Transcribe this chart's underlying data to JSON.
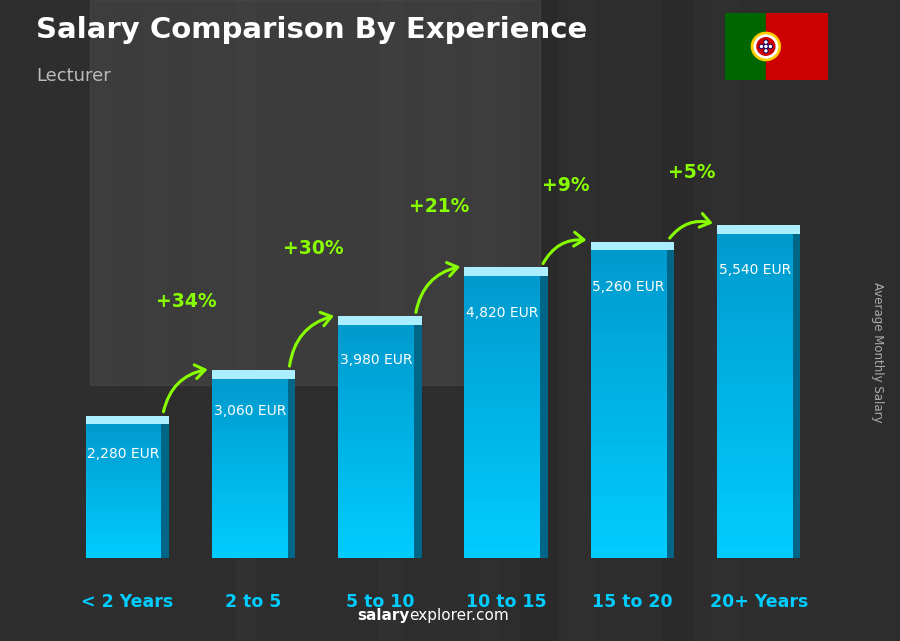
{
  "title": "Salary Comparison By Experience",
  "subtitle": "Lecturer",
  "categories": [
    "< 2 Years",
    "2 to 5",
    "5 to 10",
    "10 to 15",
    "15 to 20",
    "20+ Years"
  ],
  "values": [
    2280,
    3060,
    3980,
    4820,
    5260,
    5540
  ],
  "labels": [
    "2,280 EUR",
    "3,060 EUR",
    "3,980 EUR",
    "4,820 EUR",
    "5,260 EUR",
    "5,540 EUR"
  ],
  "pct_changes": [
    "+34%",
    "+30%",
    "+21%",
    "+9%",
    "+5%"
  ],
  "bar_color_face": "#00ccff",
  "bar_color_light": "#55ddff",
  "bar_color_dark": "#0099cc",
  "bar_color_side": "#006688",
  "bar_color_top": "#aaeeff",
  "bg_dark": "#2a2a2a",
  "bg_mid": "#404040",
  "title_color": "#ffffff",
  "subtitle_color": "#cccccc",
  "label_color": "#ffffff",
  "pct_color": "#88ff00",
  "xlabel_color": "#00ccff",
  "ylabel_text": "Average Monthly Salary",
  "watermark_bold": "salary",
  "watermark_rest": "explorer.com",
  "ylim": [
    0,
    6800
  ],
  "bar_width": 0.6,
  "fig_bg": "#3a3a3a"
}
